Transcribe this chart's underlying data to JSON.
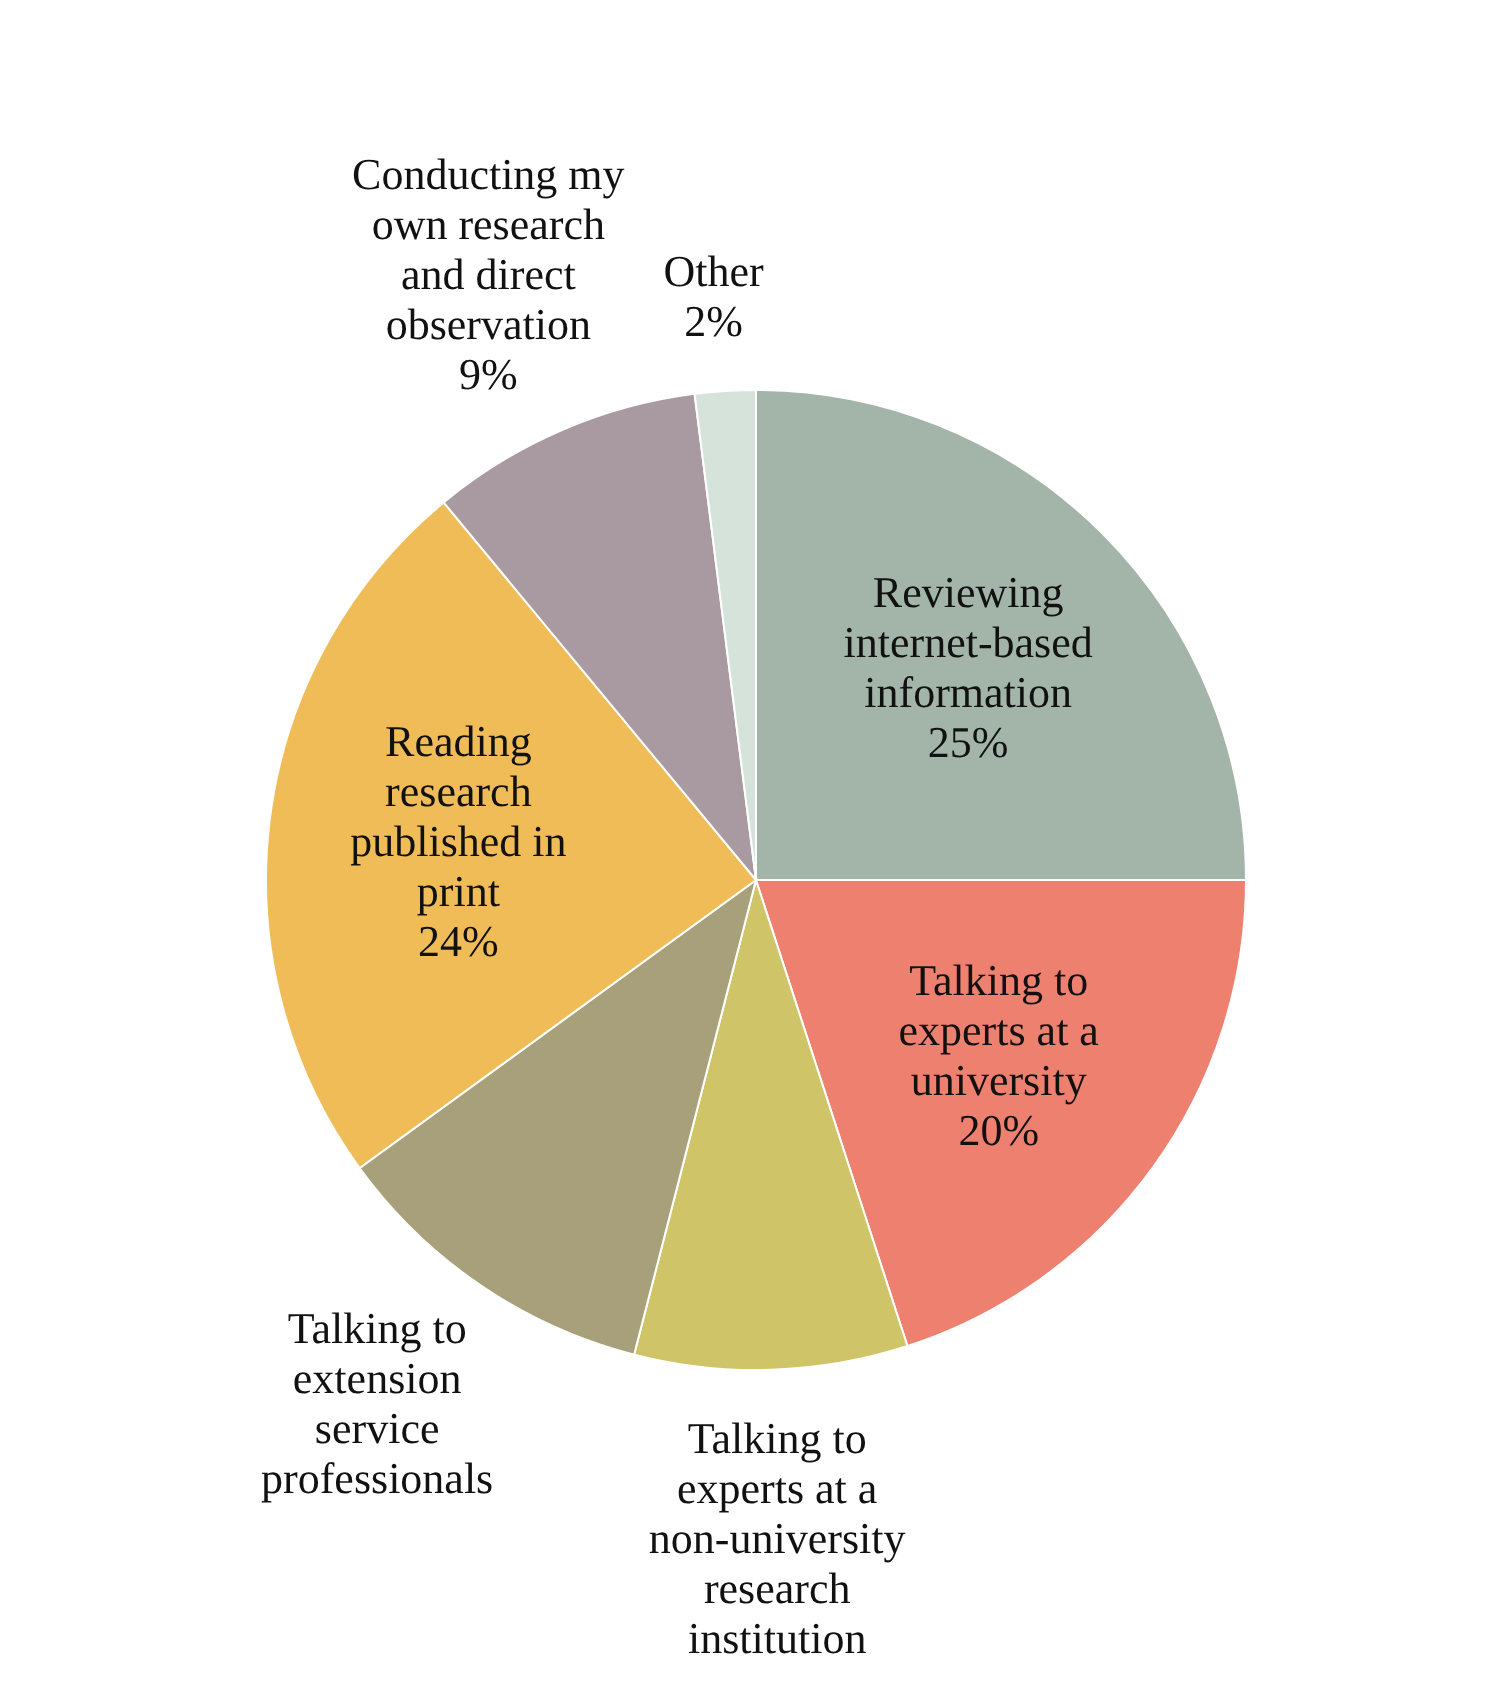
{
  "chart_data": {
    "type": "pie",
    "categories": [
      "Reviewing internet-based information",
      "Talking to experts at a university",
      "Talking to experts at a non-university research institution",
      "Talking to extension service professionals",
      "Reading research published in print",
      "Conducting my own research and direct observation",
      "Other"
    ],
    "values": [
      25,
      20,
      9,
      11,
      24,
      9,
      2
    ],
    "value_labels": [
      "25%",
      "20%",
      null,
      null,
      "24%",
      "9%",
      "2%"
    ],
    "colors": [
      "#a3b5a9",
      "#ee8070",
      "#cfc468",
      "#a8a07a",
      "#f0bc58",
      "#a89aa0",
      "#d5e3da"
    ]
  }
}
